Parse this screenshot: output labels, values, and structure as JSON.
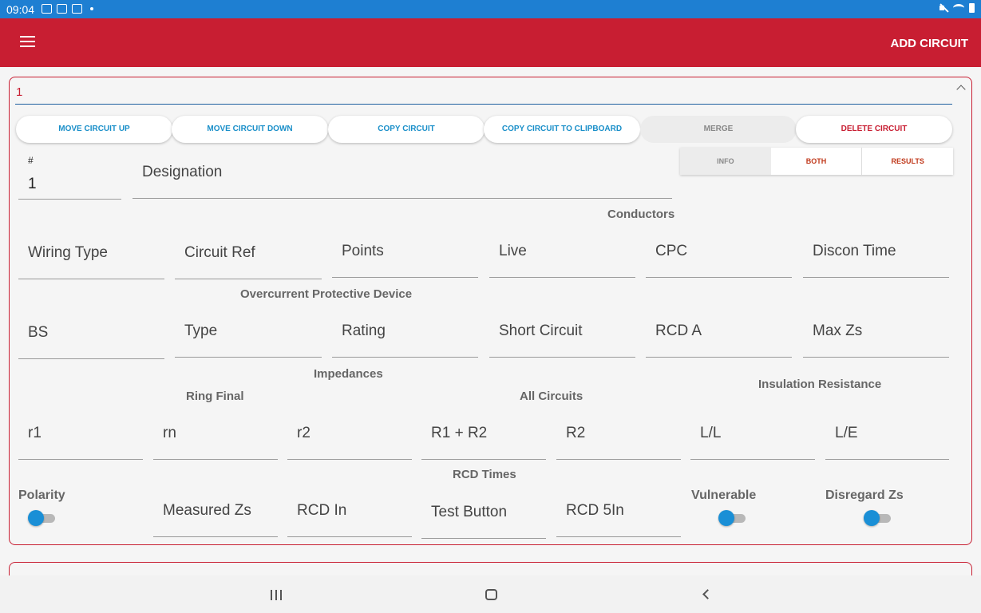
{
  "status_bar": {
    "time": "09:04"
  },
  "app_bar": {
    "action_label": "ADD CIRCUIT"
  },
  "circuit": {
    "title": "1",
    "actions": {
      "move_up": "MOVE CIRCUIT UP",
      "move_down": "MOVE CIRCUIT DOWN",
      "copy": "COPY CIRCUIT",
      "copy_clipboard": "COPY CIRCUIT TO CLIPBOARD",
      "merge": "MERGE",
      "delete": "DELETE CIRCUIT"
    },
    "view_toggle": {
      "info": "INFO",
      "both": "BOTH",
      "results": "RESULTS"
    },
    "number_label": "#",
    "number_value": "1",
    "designation_label": "Designation",
    "headings": {
      "conductors": "Conductors",
      "ocpd": "Overcurrent Protective Device",
      "impedances": "Impedances",
      "ring_final": "Ring Final",
      "all_circuits": "All Circuits",
      "insulation": "Insulation Resistance",
      "rcd_times": "RCD Times"
    },
    "row1": [
      "Wiring Type",
      "Circuit Ref",
      "Points",
      "Live",
      "CPC",
      "Discon Time"
    ],
    "row2": [
      "BS",
      "Type",
      "Rating",
      "Short Circuit",
      "RCD A",
      "Max Zs"
    ],
    "row3": [
      "r1",
      "rn",
      "r2",
      "R1 + R2",
      "R2",
      "L/L",
      "L/E"
    ],
    "row4": {
      "polarity": "Polarity",
      "measured_zs": "Measured Zs",
      "rcd_in": "RCD In",
      "test_button": "Test Button",
      "rcd_5in": "RCD 5In",
      "vulnerable": "Vulnerable",
      "disregard_zs": "Disregard Zs"
    }
  },
  "colors": {
    "app_bar": "#c81e32",
    "status_bar": "#1e7fd2",
    "accent_blue": "#1a8fc9",
    "toggle": "#1a8fd6"
  }
}
